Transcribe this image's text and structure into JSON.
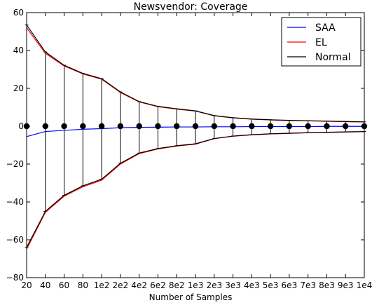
{
  "chart_data": {
    "type": "line",
    "title": "Newsvendor: Coverage",
    "xlabel": "Number of Samples",
    "ylabel": "",
    "categories": [
      "20",
      "40",
      "60",
      "80",
      "1e2",
      "2e2",
      "4e2",
      "6e2",
      "8e2",
      "1e3",
      "2e3",
      "3e3",
      "4e3",
      "5e3",
      "6e3",
      "7e3",
      "8e3",
      "9e3",
      "1e4"
    ],
    "ylim": [
      -80,
      60
    ],
    "yticks": [
      -80,
      -60,
      -40,
      -20,
      0,
      20,
      40,
      60
    ],
    "grid": false,
    "legend_position": "top-right",
    "point_values": [
      0,
      0,
      0,
      0,
      0,
      0,
      0,
      0,
      0,
      0,
      0,
      0,
      0,
      0,
      0,
      0,
      0,
      0,
      0
    ],
    "series": [
      {
        "name": "SAA",
        "color": "#0000ff",
        "values": [
          -5.5,
          -2.8,
          -2.2,
          -1.6,
          -1.3,
          -0.8,
          -0.6,
          -0.5,
          -0.4,
          -0.4,
          -0.3,
          -0.3,
          -0.2,
          -0.2,
          -0.2,
          -0.2,
          -0.1,
          -0.1,
          -0.1
        ]
      },
      {
        "name": "EL",
        "color": "#ff0000",
        "upper": [
          52,
          38.5,
          31.8,
          27.6,
          24.8,
          17.8,
          12.8,
          10.3,
          9.0,
          8.0,
          5.5,
          4.4,
          3.7,
          3.3,
          3.0,
          2.8,
          2.6,
          2.4,
          2.2
        ],
        "lower": [
          -65,
          -45.5,
          -37,
          -32,
          -28.5,
          -20,
          -14.5,
          -12,
          -10.5,
          -9.5,
          -6.6,
          -5.3,
          -4.6,
          -4.1,
          -3.8,
          -3.5,
          -3.3,
          -3.1,
          -2.9
        ]
      },
      {
        "name": "Normal",
        "color": "#000000",
        "upper": [
          53.5,
          39.2,
          32.2,
          27.9,
          25.1,
          18.1,
          13.0,
          10.5,
          9.2,
          8.1,
          5.6,
          4.5,
          3.8,
          3.4,
          3.1,
          2.9,
          2.7,
          2.5,
          2.3
        ],
        "lower": [
          -64,
          -45,
          -36.5,
          -31.5,
          -28,
          -19.6,
          -14.2,
          -11.8,
          -10.3,
          -9.3,
          -6.5,
          -5.2,
          -4.5,
          -4.0,
          -3.7,
          -3.4,
          -3.2,
          -3.0,
          -2.8
        ]
      }
    ]
  }
}
